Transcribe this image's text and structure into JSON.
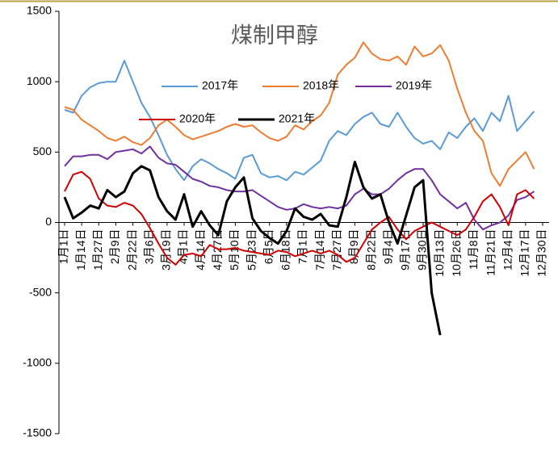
{
  "chart_data": {
    "type": "line",
    "title": "煤制甲醇",
    "categories": [
      "1月1日",
      null,
      "1月14日",
      null,
      "1月27日",
      null,
      "2月9日",
      null,
      "2月22日",
      null,
      "3月6日",
      null,
      "3月19日",
      null,
      "4月1日",
      null,
      "4月14日",
      null,
      "4月27日",
      null,
      "5月10日",
      null,
      "5月23日",
      null,
      "6月5日",
      null,
      "6月18日",
      null,
      "7月1日",
      null,
      "7月14日",
      null,
      "7月27日",
      null,
      "8月9日",
      null,
      "8月22日",
      null,
      "9月4日",
      null,
      "9月17日",
      null,
      "9月30日",
      null,
      "10月13日",
      null,
      "10月26日",
      null,
      "11月8日",
      null,
      "11月21日",
      null,
      "12月4日",
      null,
      "12月17日",
      null,
      "12月30日"
    ],
    "series": [
      {
        "name": "2017年",
        "color": "#5b9bd5",
        "values": [
          800,
          780,
          900,
          960,
          990,
          1000,
          1000,
          1150,
          1000,
          850,
          750,
          620,
          480,
          380,
          300,
          400,
          450,
          420,
          380,
          350,
          310,
          460,
          480,
          350,
          320,
          330,
          300,
          360,
          340,
          390,
          440,
          580,
          650,
          620,
          700,
          750,
          780,
          700,
          680,
          780,
          680,
          600,
          560,
          580,
          520,
          640,
          600,
          680,
          740,
          650,
          780,
          720,
          900,
          650,
          720,
          790,
          null
        ]
      },
      {
        "name": "2018年",
        "color": "#ed7d31",
        "values": [
          820,
          800,
          730,
          690,
          650,
          600,
          580,
          610,
          570,
          550,
          600,
          690,
          730,
          680,
          620,
          590,
          610,
          630,
          650,
          680,
          700,
          680,
          690,
          640,
          600,
          580,
          610,
          690,
          660,
          720,
          760,
          850,
          1050,
          1120,
          1170,
          1280,
          1200,
          1160,
          1150,
          1180,
          1120,
          1250,
          1180,
          1200,
          1260,
          1150,
          950,
          780,
          650,
          580,
          350,
          260,
          380,
          440,
          500,
          380,
          null
        ]
      },
      {
        "name": "2019年",
        "color": "#7030a0",
        "values": [
          400,
          470,
          470,
          480,
          480,
          450,
          500,
          510,
          520,
          490,
          540,
          460,
          420,
          410,
          360,
          310,
          290,
          260,
          250,
          230,
          220,
          220,
          230,
          190,
          150,
          110,
          90,
          100,
          130,
          110,
          100,
          110,
          100,
          120,
          200,
          240,
          200,
          200,
          240,
          300,
          350,
          380,
          380,
          300,
          200,
          150,
          100,
          140,
          20,
          -50,
          -20,
          0,
          50,
          160,
          180,
          220,
          null
        ]
      },
      {
        "name": "2020年",
        "color": "#d00000",
        "values": [
          220,
          340,
          360,
          310,
          170,
          120,
          110,
          140,
          120,
          60,
          -40,
          -150,
          -250,
          -300,
          -230,
          -220,
          -240,
          -160,
          -190,
          -190,
          -180,
          -200,
          -210,
          -220,
          -230,
          -200,
          -210,
          -240,
          -220,
          -200,
          -220,
          -200,
          -230,
          -280,
          -250,
          -150,
          -50,
          0,
          40,
          -50,
          -120,
          -60,
          -30,
          0,
          -30,
          -60,
          -90,
          -50,
          40,
          150,
          200,
          110,
          -20,
          200,
          230,
          170,
          null
        ]
      },
      {
        "name": "2021年",
        "color": "#000000",
        "values": [
          180,
          30,
          70,
          120,
          100,
          230,
          180,
          220,
          350,
          400,
          370,
          180,
          80,
          20,
          200,
          -30,
          80,
          -20,
          -90,
          150,
          250,
          320,
          30,
          -60,
          -110,
          -150,
          -60,
          100,
          40,
          20,
          60,
          -20,
          -30,
          180,
          430,
          250,
          170,
          200,
          0,
          -150,
          50,
          250,
          300,
          -500,
          -800,
          null,
          null,
          null,
          null,
          null,
          null,
          null,
          null,
          null,
          null,
          null,
          null
        ]
      }
    ],
    "ylim": [
      -1500,
      1500
    ],
    "yticks": [
      -1500,
      -1000,
      -500,
      0,
      500,
      1000,
      1500
    ]
  }
}
